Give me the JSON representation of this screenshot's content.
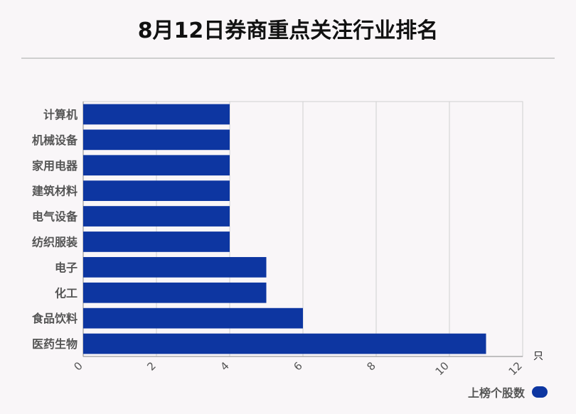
{
  "header": {
    "title": "8月12日券商重点关注行业排名"
  },
  "chart_data": {
    "type": "bar",
    "orientation": "horizontal",
    "title": "8月12日券商重点关注行业排名",
    "categories": [
      "计算机",
      "机械设备",
      "家用电器",
      "建筑材料",
      "电气设备",
      "纺织服装",
      "电子",
      "化工",
      "食品饮料",
      "医药生物"
    ],
    "series": [
      {
        "name": "上榜个股数",
        "values": [
          4,
          4,
          4,
          4,
          4,
          4,
          5,
          5,
          6,
          11
        ]
      }
    ],
    "xlim": [
      0,
      12
    ],
    "x_ticks": [
      0,
      2,
      4,
      6,
      8,
      10,
      12
    ],
    "x_unit": "只",
    "grid": true,
    "legend_position": "bottom-right",
    "bar_color": "#0d36a1"
  },
  "legend": {
    "label": "上榜个股数"
  }
}
